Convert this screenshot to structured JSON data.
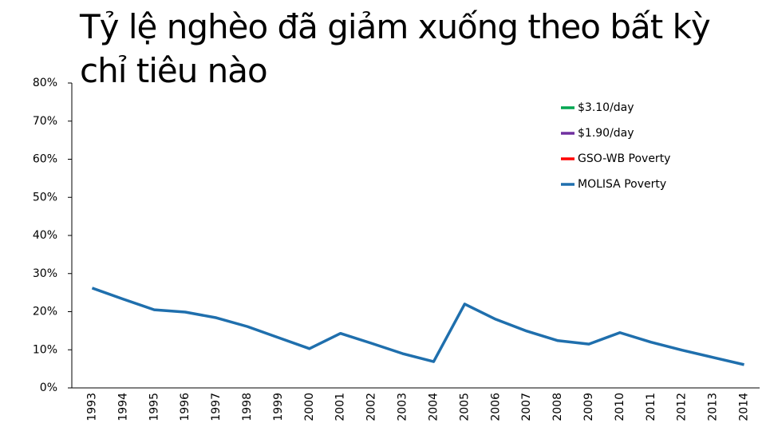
{
  "chart_data": {
    "type": "line",
    "title": "Tỷ lệ nghèo đã giảm xuống theo bất kỳ chỉ tiêu nào",
    "categories": [
      "1993",
      "1994",
      "1995",
      "1996",
      "1997",
      "1998",
      "1999",
      "2000",
      "2001",
      "2002",
      "2003",
      "2004",
      "2005",
      "2006",
      "2007",
      "2008",
      "2009",
      "2010",
      "2011",
      "2012",
      "2013",
      "2014"
    ],
    "series": [
      {
        "name": "$3.10/day",
        "color": "#00a651",
        "values": [
          null,
          null,
          null,
          null,
          null,
          null,
          null,
          null,
          null,
          null,
          null,
          null,
          null,
          null,
          null,
          null,
          null,
          null,
          null,
          null,
          null,
          null
        ]
      },
      {
        "name": "$1.90/day",
        "color": "#7030a0",
        "values": [
          null,
          null,
          null,
          null,
          null,
          null,
          null,
          null,
          null,
          null,
          null,
          null,
          null,
          null,
          null,
          null,
          null,
          null,
          null,
          null,
          null,
          null
        ]
      },
      {
        "name": "GSO-WB Poverty",
        "color": "#ff0000",
        "values": [
          null,
          null,
          null,
          null,
          null,
          null,
          null,
          null,
          null,
          null,
          null,
          null,
          null,
          null,
          null,
          null,
          null,
          null,
          null,
          null,
          null,
          null
        ]
      },
      {
        "name": "MOLISA Poverty",
        "color": "#1f6fad",
        "values": [
          26.2,
          23.3,
          20.5,
          19.9,
          18.4,
          16.1,
          13.2,
          10.3,
          14.3,
          11.7,
          9.0,
          6.9,
          22.0,
          18.0,
          14.9,
          12.4,
          11.5,
          14.5,
          12.0,
          9.9,
          8.0,
          6.1
        ]
      }
    ],
    "ylim": [
      0,
      80
    ],
    "yticks": [
      {
        "value": 0,
        "label": "0%"
      },
      {
        "value": 10,
        "label": "10%"
      },
      {
        "value": 20,
        "label": "20%"
      },
      {
        "value": 30,
        "label": "30%"
      },
      {
        "value": 40,
        "label": "40%"
      },
      {
        "value": 50,
        "label": "50%"
      },
      {
        "value": 60,
        "label": "60%"
      },
      {
        "value": 70,
        "label": "70%"
      },
      {
        "value": 80,
        "label": "80%"
      }
    ],
    "legend": "upper right"
  }
}
